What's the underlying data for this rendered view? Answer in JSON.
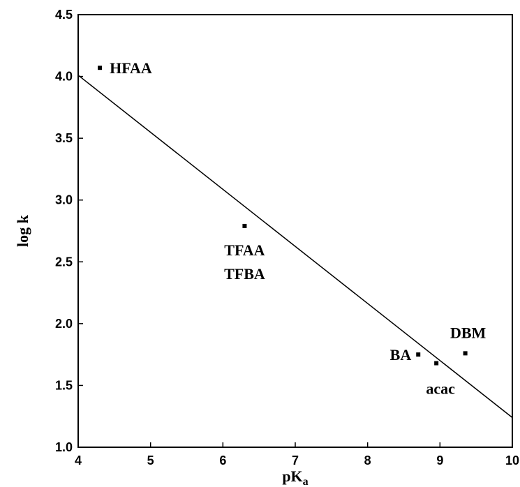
{
  "chart_data": {
    "type": "scatter",
    "xlabel": "pK",
    "xlabel_sub": "a",
    "ylabel": "log k",
    "xlim": [
      4,
      10
    ],
    "ylim": [
      1.0,
      4.5
    ],
    "x_ticks": [
      "4",
      "5",
      "6",
      "7",
      "8",
      "9",
      "10"
    ],
    "y_ticks": [
      "1.0",
      "1.5",
      "2.0",
      "2.5",
      "3.0",
      "3.5",
      "4.0",
      "4.5"
    ],
    "grid": false,
    "points": [
      {
        "x": 4.3,
        "y": 4.07,
        "label": "HFAA"
      },
      {
        "x": 6.3,
        "y": 2.79,
        "label": "TFAA",
        "label2": "TFBA"
      },
      {
        "x": 8.7,
        "y": 1.75,
        "label": "BA"
      },
      {
        "x": 8.95,
        "y": 1.68,
        "label": "acac"
      },
      {
        "x": 9.35,
        "y": 1.76,
        "label": "DBM"
      }
    ],
    "fit_line": {
      "x": [
        4,
        10
      ],
      "y": [
        4.01,
        1.24
      ]
    }
  }
}
